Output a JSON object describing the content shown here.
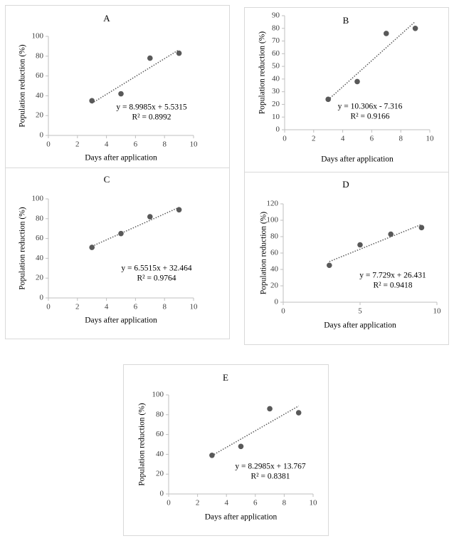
{
  "chart_data": [
    {
      "type": "scatter",
      "title": "A",
      "x_label": "Days after application",
      "y_label": "Population reduction (%)",
      "x": [
        3,
        5,
        7,
        9
      ],
      "values": [
        35,
        42,
        78,
        83
      ],
      "color": "#595959",
      "xlim": [
        0,
        10
      ],
      "xticks": [
        0,
        2,
        4,
        6,
        8,
        10
      ],
      "ylim": [
        0,
        100
      ],
      "yticks": [
        0,
        20,
        40,
        60,
        80,
        100
      ],
      "annotations": [
        "y = 8.9985x + 5.5315",
        "R² = 0.8992"
      ]
    },
    {
      "type": "scatter",
      "title": "B",
      "x_label": "Days after application",
      "y_label": "Population reduction (%)",
      "x": [
        3,
        5,
        7,
        9
      ],
      "values": [
        24,
        38,
        76,
        80
      ],
      "color": "#595959",
      "xlim": [
        0,
        10
      ],
      "xticks": [
        0,
        2,
        4,
        6,
        8,
        10
      ],
      "ylim": [
        0,
        90
      ],
      "yticks": [
        0,
        10,
        20,
        30,
        40,
        50,
        60,
        70,
        80,
        90
      ],
      "annotations": [
        "y = 10.306x - 7.316",
        "R² = 0.9166"
      ]
    },
    {
      "type": "scatter",
      "title": "C",
      "x_label": "Days after application",
      "y_label": "Population reduction (%)",
      "x": [
        3,
        5,
        7,
        9
      ],
      "values": [
        51,
        65,
        82,
        89
      ],
      "color": "#595959",
      "xlim": [
        0,
        10
      ],
      "xticks": [
        0,
        2,
        4,
        6,
        8,
        10
      ],
      "ylim": [
        0,
        100
      ],
      "yticks": [
        0,
        20,
        40,
        60,
        80,
        100
      ],
      "annotations": [
        "y = 6.5515x + 32.464",
        "R² = 0.9764"
      ]
    },
    {
      "type": "scatter",
      "title": "D",
      "x_label": "Days after application",
      "y_label": "Population reduction (%)",
      "x": [
        3,
        5,
        7,
        9
      ],
      "values": [
        45,
        70,
        83,
        91
      ],
      "color": "#595959",
      "xlim": [
        0,
        10
      ],
      "xticks": [
        0,
        5,
        10
      ],
      "ylim": [
        0,
        120
      ],
      "yticks": [
        0,
        20,
        40,
        60,
        80,
        100,
        120
      ],
      "annotations": [
        "y = 7.729x + 26.431",
        "R² = 0.9418"
      ]
    },
    {
      "type": "scatter",
      "title": "E",
      "x_label": "Days after application",
      "y_label": "Population reduction (%)",
      "x": [
        3,
        5,
        7,
        9
      ],
      "values": [
        39,
        48,
        86,
        82
      ],
      "color": "#595959",
      "xlim": [
        0,
        10
      ],
      "xticks": [
        0,
        2,
        4,
        6,
        8,
        10
      ],
      "ylim": [
        0,
        100
      ],
      "yticks": [
        0,
        20,
        40,
        60,
        80,
        100
      ],
      "annotations": [
        "y = 8.2985x + 13.767",
        "R² = 0.8381"
      ]
    }
  ]
}
